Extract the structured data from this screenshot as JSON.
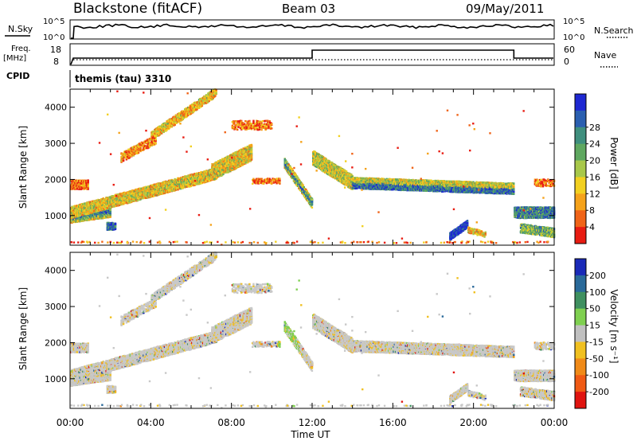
{
  "header": {
    "station": "Blackstone (fitACF)",
    "beam": "Beam 03",
    "date": "09/May/2011"
  },
  "strips": {
    "nsky_label": "N.Sky",
    "nsky_ticks": [
      "10^5",
      "10^0"
    ],
    "nsearch_label": "N.Search",
    "nsearch_ticks": [
      "10^5",
      "10^0"
    ],
    "freq_label_1": "Freq.",
    "freq_label_2": "[MHz]",
    "freq_ticks": [
      "18",
      "8"
    ],
    "nave_label": "Nave",
    "nave_ticks": [
      "60",
      "0"
    ],
    "cpid_label": "CPID",
    "cpid_value": "themis (tau) 3310"
  },
  "chart_data": [
    {
      "type": "heatmap",
      "name": "power",
      "ylabel": "Slant Range [km]",
      "y_ticks": [
        1000,
        2000,
        3000,
        4000
      ],
      "ylim": [
        180,
        4500
      ],
      "xlim": [
        0,
        24
      ],
      "colorbar": {
        "label": "Power [dB]",
        "ticks": [
          "4",
          "8",
          "12",
          "16",
          "20",
          "24",
          "28"
        ],
        "colors": [
          "#1e28d2",
          "#2a5fb0",
          "#3f8f7e",
          "#5fa860",
          "#a8c84a",
          "#f2d020",
          "#f5a21a",
          "#f06418",
          "#e81c12"
        ]
      },
      "features": [
        {
          "t0": 0.0,
          "t1": 2.0,
          "r0": 820,
          "r1": 1080,
          "level": 0.9
        },
        {
          "t0": 2.0,
          "t1": 7.0,
          "r0": 1080,
          "r1": 2200,
          "level": 0.5
        },
        {
          "t0": 7.0,
          "t1": 9.0,
          "r0": 2200,
          "r1": 2750,
          "level": 0.4
        },
        {
          "t0": 10.7,
          "t1": 12.0,
          "r0": 2500,
          "r1": 1350,
          "level": 0.8
        },
        {
          "t0": 12.0,
          "t1": 22.0,
          "r0": 2600,
          "r1": 1700,
          "level": 0.7
        },
        {
          "t0": 18.8,
          "t1": 19.7,
          "r0": 400,
          "r1": 800,
          "level": 0.95
        },
        {
          "t0": 22.0,
          "t1": 24.0,
          "r0": 1100,
          "r1": 1000,
          "level": 0.75
        }
      ]
    },
    {
      "type": "heatmap",
      "name": "velocity",
      "ylabel": "Slant Range [km]",
      "y_ticks": [
        1000,
        2000,
        3000,
        4000
      ],
      "ylim": [
        180,
        4500
      ],
      "xlim": [
        0,
        24
      ],
      "colorbar": {
        "label": "Velocity [m s⁻¹]",
        "ticks": [
          "200",
          "100",
          "50",
          "15",
          "-15",
          "-50",
          "-100",
          "-200"
        ],
        "colors": [
          "#1a2ab8",
          "#2a6a9a",
          "#3f9060",
          "#7fd050",
          "#c0c0c0",
          "#f0c020",
          "#f08a18",
          "#f05a14",
          "#e01410"
        ]
      }
    }
  ],
  "xaxis": {
    "ticks": [
      "00:00",
      "04:00",
      "08:00",
      "12:00",
      "16:00",
      "20:00",
      "00:00"
    ],
    "label": "Time UT"
  }
}
